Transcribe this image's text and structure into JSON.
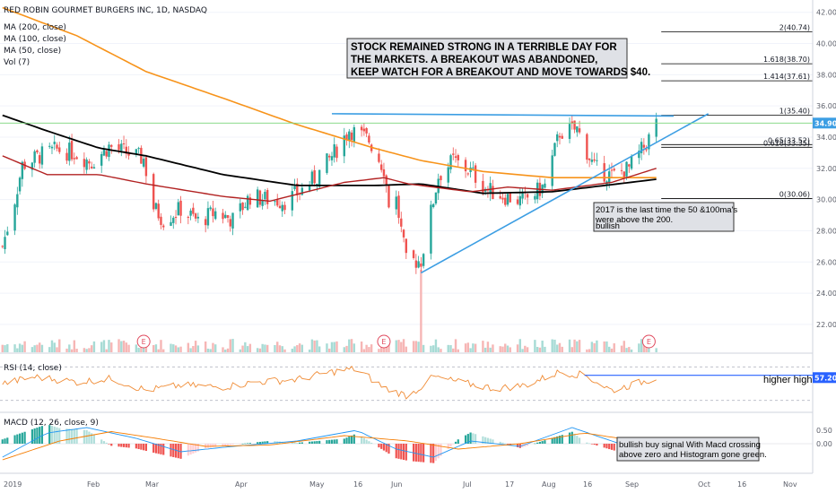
{
  "legend": {
    "title": "RED ROBIN GOURMET BURGERS INC, 1D, NASDAQ",
    "ma200": "MA (200, close)",
    "ma100": "MA (100, close)",
    "ma50": "MA (50, close)",
    "vol": "Vol (7)",
    "rsi": "RSI (14, close)",
    "macd": "MACD (12, 26, close, 9)"
  },
  "colors": {
    "up": "#26a69a",
    "down": "#ef5350",
    "ma200": "#f7931a",
    "ma100": "#000000",
    "ma50": "#b22222",
    "trend": "#3c9ee3",
    "rsi": "#f08c36",
    "macd": "#2196f3",
    "signal": "#f57c00",
    "price_tag": "#3c9ee3",
    "rsi_tag": "#2962ff"
  },
  "annotations": {
    "main_note": [
      "STOCK REMAINED STRONG IN A TERRIBLE DAY FOR",
      "THE MARKETS. A BREAKOUT WAS ABANDONED,",
      "KEEP WATCH FOR A BREAKOUT AND MOVE TOWARDS $40."
    ],
    "ma_note": [
      "2017 is the last time the 50 &100ma's",
      "were above the 200."
    ],
    "ma_note_2": "bullish",
    "rsi_note": "higher high",
    "macd_note": [
      "bullish buy signal With Macd  crossing",
      "above zero and Histogram gone green."
    ],
    "earnings_marker": "E"
  },
  "price_axis": {
    "labels": [
      "42.00",
      "40.00",
      "38.00",
      "36.00",
      "34.00",
      "32.00",
      "30.00",
      "28.00",
      "26.00",
      "24.00",
      "22.00"
    ],
    "current_price": "34.90"
  },
  "rsi_axis": {
    "current": "57.20"
  },
  "macd_axis": {
    "labels": [
      "0.50",
      "0.00"
    ]
  },
  "time_axis": {
    "labels": [
      "2019",
      "Feb",
      "Mar",
      "Apr",
      "May",
      "16",
      "Jun",
      "Jul",
      "17",
      "Aug",
      "16",
      "Sep",
      "Oct",
      "16",
      "Nov"
    ]
  },
  "chart_data": {
    "type": "candlestick",
    "title": "RED ROBIN GOURMET BURGERS INC, 1D, NASDAQ",
    "x_range": [
      "2019-01-01",
      "2019-11-15"
    ],
    "y_range": [
      20.5,
      42.5
    ],
    "price_path": [
      [
        "2019-01-02",
        27.0
      ],
      [
        "2019-01-07",
        30.0
      ],
      [
        "2019-01-10",
        32.2
      ],
      [
        "2019-01-17",
        32.8
      ],
      [
        "2019-01-24",
        33.2
      ],
      [
        "2019-01-31",
        33.0
      ],
      [
        "2019-02-07",
        32.4
      ],
      [
        "2019-02-14",
        33.4
      ],
      [
        "2019-02-21",
        33.0
      ],
      [
        "2019-02-28",
        32.6
      ],
      [
        "2019-03-04",
        29.5
      ],
      [
        "2019-03-08",
        28.7
      ],
      [
        "2019-03-15",
        29.4
      ],
      [
        "2019-03-22",
        28.6
      ],
      [
        "2019-03-29",
        29.2
      ],
      [
        "2019-04-05",
        28.7
      ],
      [
        "2019-04-12",
        30.2
      ],
      [
        "2019-04-19",
        30.0
      ],
      [
        "2019-04-26",
        29.9
      ],
      [
        "2019-05-02",
        30.5
      ],
      [
        "2019-05-09",
        31.5
      ],
      [
        "2019-05-16",
        33.0
      ],
      [
        "2019-05-22",
        34.5
      ],
      [
        "2019-05-30",
        33.8
      ],
      [
        "2019-06-05",
        32.0
      ],
      [
        "2019-06-07",
        29.8
      ],
      [
        "2019-06-10",
        30.0
      ],
      [
        "2019-06-14",
        26.0
      ],
      [
        "2019-06-20",
        26.1
      ],
      [
        "2019-06-27",
        31.5
      ],
      [
        "2019-07-03",
        32.5
      ],
      [
        "2019-07-10",
        31.8
      ],
      [
        "2019-07-17",
        30.6
      ],
      [
        "2019-07-24",
        30.2
      ],
      [
        "2019-07-31",
        29.9
      ],
      [
        "2019-08-05",
        30.4
      ],
      [
        "2019-08-09",
        30.9
      ],
      [
        "2019-08-15",
        34.3
      ],
      [
        "2019-08-22",
        34.5
      ],
      [
        "2019-08-29",
        32.0
      ],
      [
        "2019-09-05",
        31.5
      ],
      [
        "2019-09-12",
        32.0
      ],
      [
        "2019-09-19",
        33.6
      ],
      [
        "2019-09-23",
        34.9
      ]
    ],
    "moving_averages": [
      {
        "name": "MA (200, close)",
        "points": [
          [
            "2019-01-02",
            42.3
          ],
          [
            "2019-02-01",
            40.5
          ],
          [
            "2019-03-01",
            38.2
          ],
          [
            "2019-04-01",
            36.5
          ],
          [
            "2019-05-01",
            34.8
          ],
          [
            "2019-06-01",
            33.3
          ],
          [
            "2019-06-20",
            32.5
          ],
          [
            "2019-07-15",
            31.8
          ],
          [
            "2019-08-12",
            31.4
          ],
          [
            "2019-09-23",
            31.4
          ]
        ]
      },
      {
        "name": "MA (100, close)",
        "points": [
          [
            "2019-01-02",
            35.4
          ],
          [
            "2019-01-20",
            34.4
          ],
          [
            "2019-02-10",
            33.3
          ],
          [
            "2019-03-01",
            32.8
          ],
          [
            "2019-04-01",
            31.6
          ],
          [
            "2019-05-01",
            30.9
          ],
          [
            "2019-06-01",
            30.9
          ],
          [
            "2019-06-20",
            31.0
          ],
          [
            "2019-07-15",
            30.4
          ],
          [
            "2019-08-12",
            30.5
          ],
          [
            "2019-09-23",
            31.3
          ]
        ]
      },
      {
        "name": "MA (50, close)",
        "points": [
          [
            "2019-01-02",
            32.8
          ],
          [
            "2019-01-20",
            31.6
          ],
          [
            "2019-02-10",
            31.6
          ],
          [
            "2019-03-01",
            31.0
          ],
          [
            "2019-04-01",
            30.2
          ],
          [
            "2019-04-20",
            29.9
          ],
          [
            "2019-05-20",
            31.1
          ],
          [
            "2019-06-05",
            31.4
          ],
          [
            "2019-06-15",
            31.0
          ],
          [
            "2019-07-10",
            30.5
          ],
          [
            "2019-07-25",
            30.8
          ],
          [
            "2019-08-12",
            30.6
          ],
          [
            "2019-09-05",
            31.1
          ],
          [
            "2019-09-23",
            32.0
          ]
        ]
      }
    ],
    "fib_levels": [
      {
        "label": "2(40.74)",
        "value": 40.74
      },
      {
        "label": "1.618(38.70)",
        "value": 38.7
      },
      {
        "label": "1.414(37.61)",
        "value": 37.61
      },
      {
        "label": "1(35.40)",
        "value": 35.4
      },
      {
        "label": "0.65(33.52)",
        "value": 33.52
      },
      {
        "label": "0.618(33.35)",
        "value": 33.35
      },
      {
        "label": "0(30.06)",
        "value": 30.06
      }
    ],
    "resistance_line": [
      [
        "2019-05-15",
        35.5
      ],
      [
        "2019-09-30",
        35.35
      ]
    ],
    "support_line": [
      [
        "2019-06-20",
        25.3
      ],
      [
        "2019-10-14",
        35.5
      ]
    ],
    "horizontal_line": 34.9,
    "volume_spike_date": "2019-06-20",
    "earnings_dates": [
      "2019-02-28",
      "2019-06-05",
      "2019-09-20"
    ]
  },
  "rsi_chart": {
    "type": "line",
    "series_name": "RSI (14, close)",
    "last_value": 57.2,
    "higher_high_line": [
      [
        "2019-08-25",
        60.0
      ],
      [
        "2019-11-15",
        60.0
      ]
    ],
    "points": [
      [
        "2019-01-02",
        50
      ],
      [
        "2019-01-15",
        58
      ],
      [
        "2019-02-01",
        52
      ],
      [
        "2019-02-15",
        56
      ],
      [
        "2019-03-01",
        42
      ],
      [
        "2019-03-15",
        48
      ],
      [
        "2019-04-01",
        46
      ],
      [
        "2019-04-15",
        52
      ],
      [
        "2019-05-01",
        55
      ],
      [
        "2019-05-15",
        64
      ],
      [
        "2019-05-25",
        68
      ],
      [
        "2019-06-05",
        45
      ],
      [
        "2019-06-15",
        35
      ],
      [
        "2019-06-25",
        58
      ],
      [
        "2019-07-05",
        52
      ],
      [
        "2019-07-20",
        44
      ],
      [
        "2019-08-01",
        48
      ],
      [
        "2019-08-15",
        64
      ],
      [
        "2019-08-25",
        60
      ],
      [
        "2019-09-05",
        42
      ],
      [
        "2019-09-15",
        50
      ],
      [
        "2019-09-23",
        57.2
      ]
    ]
  },
  "macd_chart": {
    "type": "line",
    "series_name": "MACD (12, 26, close, 9)",
    "macd": [
      [
        "2019-01-02",
        -0.5
      ],
      [
        "2019-01-20",
        0.4
      ],
      [
        "2019-02-05",
        0.6
      ],
      [
        "2019-02-25",
        0.2
      ],
      [
        "2019-03-15",
        -0.3
      ],
      [
        "2019-04-05",
        -0.1
      ],
      [
        "2019-05-01",
        0.1
      ],
      [
        "2019-05-25",
        0.5
      ],
      [
        "2019-06-10",
        -0.2
      ],
      [
        "2019-06-25",
        -0.5
      ],
      [
        "2019-07-10",
        0.1
      ],
      [
        "2019-07-30",
        -0.1
      ],
      [
        "2019-08-20",
        0.6
      ],
      [
        "2019-09-05",
        0.1
      ],
      [
        "2019-09-15",
        -0.2
      ],
      [
        "2019-09-23",
        0.15
      ]
    ],
    "signal": [
      [
        "2019-01-02",
        -0.6
      ],
      [
        "2019-01-25",
        0.1
      ],
      [
        "2019-02-15",
        0.45
      ],
      [
        "2019-03-05",
        0.2
      ],
      [
        "2019-03-25",
        -0.1
      ],
      [
        "2019-04-20",
        -0.05
      ],
      [
        "2019-05-20",
        0.3
      ],
      [
        "2019-06-15",
        0.1
      ],
      [
        "2019-07-05",
        -0.2
      ],
      [
        "2019-07-30",
        0.0
      ],
      [
        "2019-08-25",
        0.4
      ],
      [
        "2019-09-15",
        0.1
      ],
      [
        "2019-09-23",
        0.05
      ]
    ]
  }
}
